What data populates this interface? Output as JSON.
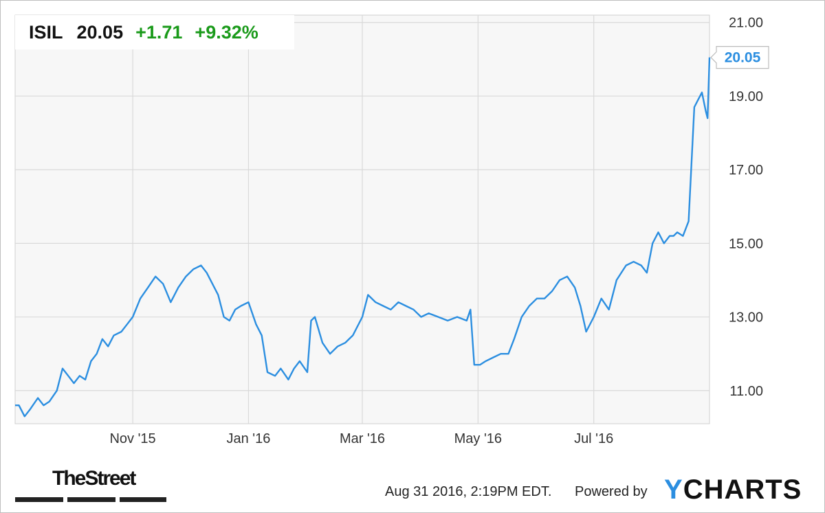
{
  "header": {
    "symbol": "ISIL",
    "price": "20.05",
    "change": "+1.71",
    "change_percent": "+9.32%"
  },
  "footer": {
    "timestamp": "Aug 31 2016, 2:19PM EDT.",
    "powered_by": "Powered by",
    "brand_y": "Y",
    "brand_rest": "CHARTS",
    "publisher": "TheStreet"
  },
  "colors": {
    "line": "#2b8ee0",
    "positive": "#1a9a1a",
    "grid": "#d9d9d9",
    "plot_bg": "#f7f7f7"
  },
  "chart_data": {
    "type": "line",
    "title": "",
    "xlabel": "",
    "ylabel": "",
    "ylim": [
      10.1,
      21.2
    ],
    "yticks": [
      11,
      13,
      15,
      17,
      19,
      21
    ],
    "ytick_labels": [
      "11.00",
      "13.00",
      "15.00",
      "17.00",
      "19.00",
      "21.00"
    ],
    "xlim": [
      "2015-08-31",
      "2016-08-31"
    ],
    "xticks": [
      "2015-11-01",
      "2016-01-01",
      "2016-03-01",
      "2016-05-01",
      "2016-07-01"
    ],
    "xtick_labels": [
      "Nov '15",
      "Jan '16",
      "Mar '16",
      "May '16",
      "Jul '16"
    ],
    "grid": true,
    "last_value_label": "20.05",
    "series": [
      {
        "name": "",
        "x": [
          "2015-08-31",
          "2015-09-02",
          "2015-09-05",
          "2015-09-08",
          "2015-09-12",
          "2015-09-15",
          "2015-09-18",
          "2015-09-22",
          "2015-09-25",
          "2015-09-28",
          "2015-10-01",
          "2015-10-04",
          "2015-10-07",
          "2015-10-10",
          "2015-10-13",
          "2015-10-16",
          "2015-10-19",
          "2015-10-22",
          "2015-10-26",
          "2015-10-29",
          "2015-11-01",
          "2015-11-05",
          "2015-11-09",
          "2015-11-13",
          "2015-11-17",
          "2015-11-21",
          "2015-11-25",
          "2015-11-29",
          "2015-12-03",
          "2015-12-07",
          "2015-12-10",
          "2015-12-13",
          "2015-12-16",
          "2015-12-19",
          "2015-12-22",
          "2015-12-25",
          "2015-12-28",
          "2016-01-01",
          "2016-01-05",
          "2016-01-08",
          "2016-01-11",
          "2016-01-15",
          "2016-01-18",
          "2016-01-22",
          "2016-01-25",
          "2016-01-28",
          "2016-02-01",
          "2016-02-03",
          "2016-02-05",
          "2016-02-09",
          "2016-02-13",
          "2016-02-17",
          "2016-02-21",
          "2016-02-25",
          "2016-03-01",
          "2016-03-04",
          "2016-03-08",
          "2016-03-12",
          "2016-03-16",
          "2016-03-20",
          "2016-03-24",
          "2016-03-28",
          "2016-04-01",
          "2016-04-05",
          "2016-04-10",
          "2016-04-15",
          "2016-04-20",
          "2016-04-25",
          "2016-04-27",
          "2016-04-29",
          "2016-05-02",
          "2016-05-05",
          "2016-05-09",
          "2016-05-13",
          "2016-05-17",
          "2016-05-20",
          "2016-05-24",
          "2016-05-28",
          "2016-06-01",
          "2016-06-05",
          "2016-06-09",
          "2016-06-13",
          "2016-06-17",
          "2016-06-21",
          "2016-06-24",
          "2016-06-27",
          "2016-07-01",
          "2016-07-05",
          "2016-07-09",
          "2016-07-13",
          "2016-07-18",
          "2016-07-22",
          "2016-07-26",
          "2016-07-29",
          "2016-08-01",
          "2016-08-04",
          "2016-08-07",
          "2016-08-10",
          "2016-08-12",
          "2016-08-14",
          "2016-08-17",
          "2016-08-20",
          "2016-08-23",
          "2016-08-25",
          "2016-08-27",
          "2016-08-29",
          "2016-08-30",
          "2016-08-31"
        ],
        "values": [
          10.6,
          10.6,
          10.3,
          10.5,
          10.8,
          10.6,
          10.7,
          11.0,
          11.6,
          11.4,
          11.2,
          11.4,
          11.3,
          11.8,
          12.0,
          12.4,
          12.2,
          12.5,
          12.6,
          12.8,
          13.0,
          13.5,
          13.8,
          14.1,
          13.9,
          13.4,
          13.8,
          14.1,
          14.3,
          14.4,
          14.2,
          13.9,
          13.6,
          13.0,
          12.9,
          13.2,
          13.3,
          13.4,
          12.8,
          12.5,
          11.5,
          11.4,
          11.6,
          11.3,
          11.6,
          11.8,
          11.5,
          12.9,
          13.0,
          12.3,
          12.0,
          12.2,
          12.3,
          12.5,
          13.0,
          13.6,
          13.4,
          13.3,
          13.2,
          13.4,
          13.3,
          13.2,
          13.0,
          13.1,
          13.0,
          12.9,
          13.0,
          12.9,
          13.2,
          11.7,
          11.7,
          11.8,
          11.9,
          12.0,
          12.0,
          12.4,
          13.0,
          13.3,
          13.5,
          13.5,
          13.7,
          14.0,
          14.1,
          13.8,
          13.3,
          12.6,
          13.0,
          13.5,
          13.2,
          14.0,
          14.4,
          14.5,
          14.4,
          14.2,
          15.0,
          15.3,
          15.0,
          15.2,
          15.2,
          15.3,
          15.2,
          15.6,
          18.7,
          18.9,
          19.1,
          18.6,
          18.4,
          20.05
        ]
      }
    ]
  }
}
